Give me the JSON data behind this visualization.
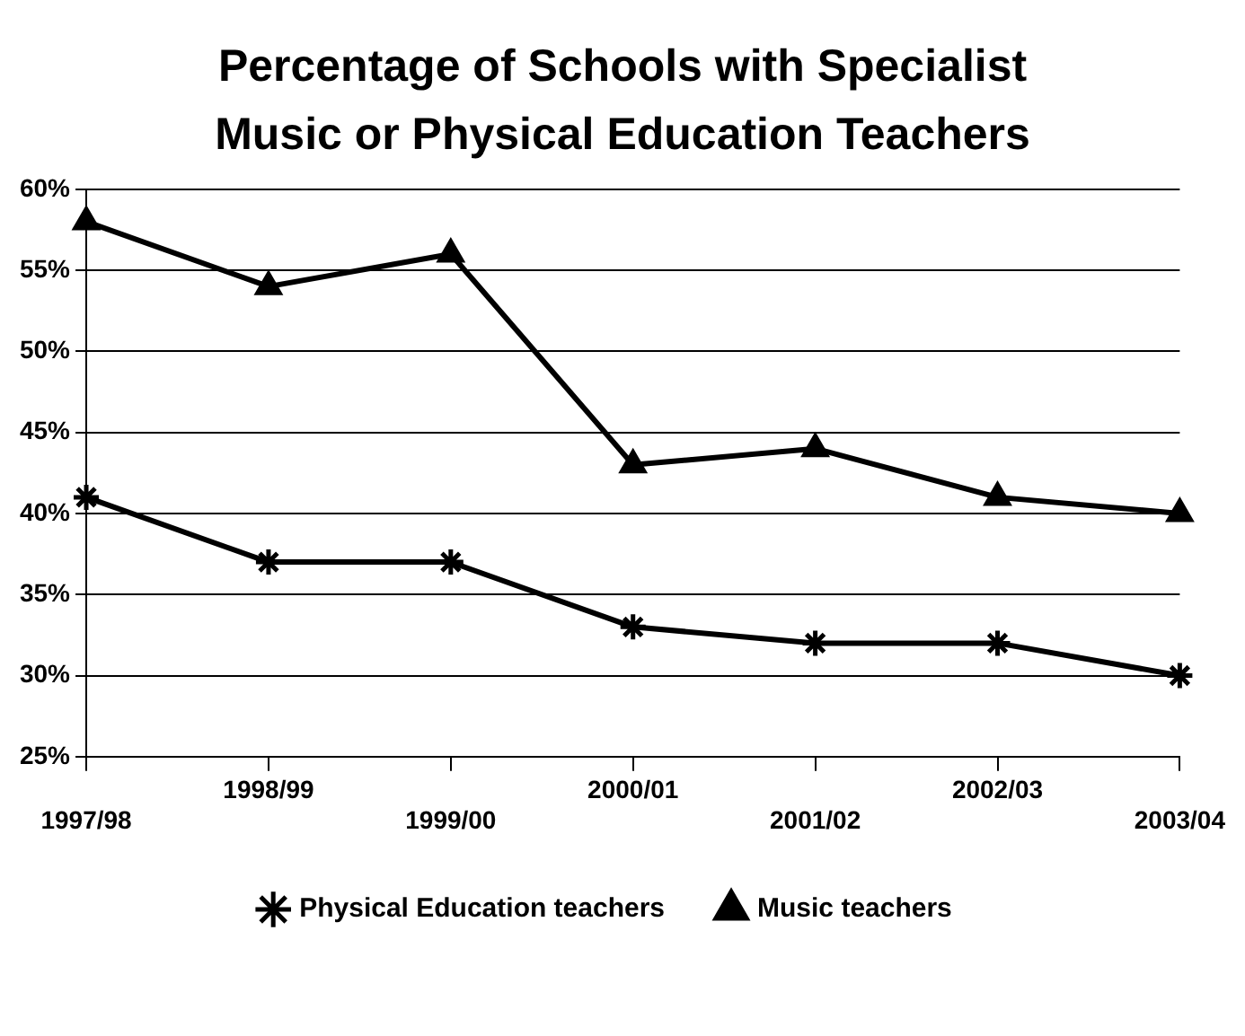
{
  "chart_data": {
    "type": "line",
    "title": "Percentage of Schools with Specialist Music or Physical Education Teachers",
    "categories": [
      "1997/98",
      "1998/99",
      "1999/00",
      "2000/01",
      "2001/02",
      "2002/03",
      "2003/04"
    ],
    "series": [
      {
        "name": "Physical Education teachers",
        "color": "#000000",
        "marker": "cross",
        "values": [
          41,
          37,
          37,
          33,
          32,
          32,
          30
        ]
      },
      {
        "name": "Music teachers",
        "color": "#000000",
        "marker": "triangle",
        "values": [
          58,
          54,
          56,
          43,
          44,
          41,
          40
        ]
      }
    ],
    "ylim": [
      25,
      60
    ],
    "yticks": [
      {
        "value": 25,
        "label": "25%"
      },
      {
        "value": 30,
        "label": "30%"
      },
      {
        "value": 35,
        "label": "35%"
      },
      {
        "value": 40,
        "label": "40%"
      },
      {
        "value": 45,
        "label": "45%"
      },
      {
        "value": 50,
        "label": "50%"
      },
      {
        "value": 55,
        "label": "55%"
      },
      {
        "value": 60,
        "label": "60%"
      }
    ],
    "grid": "y",
    "legend": "bottom",
    "line_style": "solid"
  }
}
